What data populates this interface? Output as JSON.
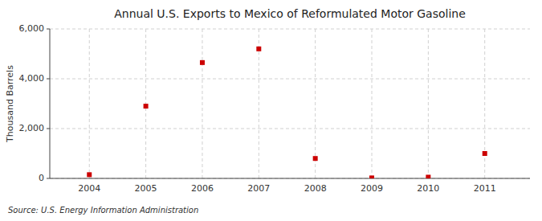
{
  "chart_data": {
    "type": "scatter",
    "title": "Annual U.S. Exports to Mexico of Reformulated Motor Gasoline",
    "ylabel": "Thousand Barrels",
    "annotation": "Source: U.S. Energy Information Administration",
    "x": [
      2004,
      2005,
      2006,
      2007,
      2008,
      2009,
      2010,
      2011
    ],
    "values": [
      150,
      2900,
      4650,
      5200,
      800,
      20,
      50,
      1000
    ],
    "xlim": [
      2003.3,
      2011.8
    ],
    "xticks": [
      2004,
      2005,
      2006,
      2007,
      2008,
      2009,
      2010,
      2011
    ],
    "ylim": [
      0,
      6000
    ],
    "yticks": [
      0,
      {
        "value": 2000,
        "label": "2,000"
      },
      {
        "value": 4000,
        "label": "4,000"
      },
      {
        "value": 6000,
        "label": "6,000"
      }
    ],
    "color": "#cc0000",
    "marker": "square",
    "grid": true
  }
}
